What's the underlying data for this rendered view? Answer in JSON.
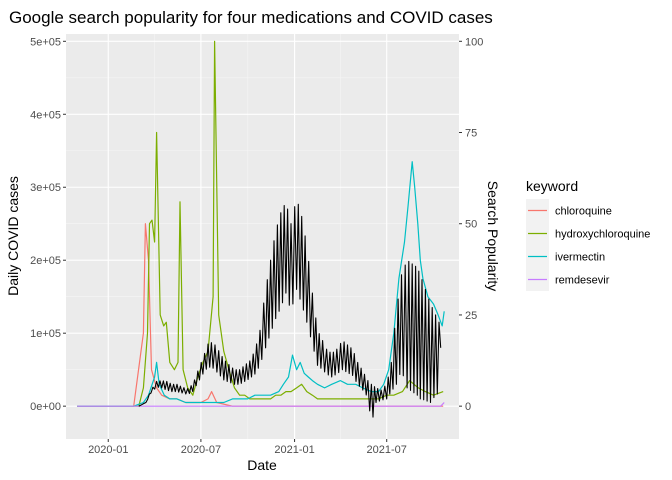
{
  "chart_data": {
    "type": "line",
    "title": "Google search popularity for four medications and COVID cases",
    "xlabel": "Date",
    "ylabel": "Daily COVID cases",
    "ylabel_right": "Search Popularity",
    "x_ticks": [
      "2020-01",
      "2020-07",
      "2021-01",
      "2021-07"
    ],
    "y_ticks": [
      "0e+00",
      "1e+05",
      "2e+05",
      "3e+05",
      "4e+05",
      "5e+05"
    ],
    "y2_ticks": [
      "0",
      "25",
      "50",
      "75",
      "100"
    ],
    "ylim": [
      -45000,
      510000
    ],
    "y2lim": [
      -9,
      102
    ],
    "xlim": [
      "2019-10-10",
      "2021-11-20"
    ],
    "grid": true,
    "legend_title": "keyword",
    "legend_position": "right",
    "covid_cases": {
      "color": "#000000",
      "x": [
        "2020-03-01",
        "2020-03-15",
        "2020-03-25",
        "2020-04-05",
        "2020-04-15",
        "2020-04-25",
        "2020-05-05",
        "2020-05-15",
        "2020-05-25",
        "2020-06-05",
        "2020-06-15",
        "2020-06-25",
        "2020-07-05",
        "2020-07-15",
        "2020-07-25",
        "2020-08-05",
        "2020-08-15",
        "2020-08-25",
        "2020-09-05",
        "2020-09-15",
        "2020-09-25",
        "2020-10-05",
        "2020-10-15",
        "2020-10-25",
        "2020-11-05",
        "2020-11-15",
        "2020-11-25",
        "2020-12-05",
        "2020-12-15",
        "2020-12-25",
        "2021-01-05",
        "2021-01-15",
        "2021-01-25",
        "2021-02-05",
        "2021-02-15",
        "2021-02-25",
        "2021-03-05",
        "2021-03-15",
        "2021-03-25",
        "2021-04-05",
        "2021-04-15",
        "2021-04-25",
        "2021-05-05",
        "2021-05-15",
        "2021-05-25",
        "2021-06-01",
        "2021-06-10",
        "2021-06-20",
        "2021-07-01",
        "2021-07-10",
        "2021-07-20",
        "2021-07-30",
        "2021-08-10",
        "2021-08-20",
        "2021-08-30",
        "2021-09-05",
        "2021-09-15",
        "2021-09-25",
        "2021-10-05",
        "2021-10-15"
      ],
      "values": [
        0,
        5000,
        20000,
        30000,
        30000,
        28000,
        25000,
        25000,
        22000,
        20000,
        25000,
        40000,
        55000,
        70000,
        70000,
        60000,
        50000,
        45000,
        40000,
        40000,
        45000,
        50000,
        60000,
        80000,
        120000,
        150000,
        180000,
        200000,
        230000,
        200000,
        240000,
        210000,
        170000,
        120000,
        80000,
        70000,
        60000,
        55000,
        60000,
        70000,
        65000,
        60000,
        45000,
        35000,
        25000,
        20000,
        15000,
        15000,
        20000,
        40000,
        80000,
        130000,
        160000,
        170000,
        160000,
        140000,
        120000,
        100000,
        90000,
        80000
      ],
      "weekly_low": [
        0,
        5000,
        18000,
        26000,
        25000,
        22000,
        20000,
        20000,
        18000,
        16000,
        20000,
        32000,
        44000,
        54000,
        52000,
        44000,
        36000,
        33000,
        30000,
        30000,
        34000,
        38000,
        44000,
        56000,
        80000,
        100000,
        120000,
        135000,
        155000,
        130000,
        160000,
        140000,
        115000,
        85000,
        56000,
        50000,
        44000,
        40000,
        44000,
        50000,
        46000,
        42000,
        30000,
        22000,
        12000,
        -25000,
        5000,
        8000,
        10000,
        20000,
        30000,
        50000,
        25000,
        20000,
        15000,
        10000,
        8000,
        5000,
        15000,
        20000
      ],
      "weekly_high": [
        0,
        5000,
        22000,
        34000,
        35000,
        34000,
        30000,
        30000,
        26000,
        24000,
        30000,
        48000,
        66000,
        85000,
        88000,
        76000,
        64000,
        57000,
        50000,
        50000,
        56000,
        62000,
        76000,
        104000,
        160000,
        200000,
        240000,
        265000,
        280000,
        250000,
        285000,
        260000,
        220000,
        155000,
        104000,
        90000,
        78000,
        72000,
        78000,
        90000,
        84000,
        78000,
        60000,
        48000,
        35000,
        30000,
        25000,
        22000,
        30000,
        60000,
        130000,
        180000,
        200000,
        195000,
        190000,
        180000,
        160000,
        140000,
        125000,
        110000
      ]
    },
    "series": [
      {
        "name": "chloroquine",
        "color": "#F8766D",
        "x": [
          "2019-11-01",
          "2020-02-20",
          "2020-03-10",
          "2020-03-14",
          "2020-03-20",
          "2020-03-26",
          "2020-04-05",
          "2020-04-15",
          "2020-05-01",
          "2020-05-15",
          "2020-06-01",
          "2020-07-01",
          "2020-07-15",
          "2020-07-22",
          "2020-08-01",
          "2020-09-01",
          "2021-01-01",
          "2021-07-01",
          "2021-10-20"
        ],
        "values": [
          0,
          0,
          20,
          50,
          40,
          10,
          5,
          3,
          2,
          2,
          1,
          1,
          2,
          4,
          1,
          0,
          0,
          0,
          0
        ]
      },
      {
        "name": "hydroxychloroquine",
        "color": "#7CAE00",
        "x": [
          "2019-11-01",
          "2020-03-01",
          "2020-03-10",
          "2020-03-18",
          "2020-03-22",
          "2020-03-27",
          "2020-04-01",
          "2020-04-05",
          "2020-04-12",
          "2020-04-19",
          "2020-04-24",
          "2020-05-01",
          "2020-05-10",
          "2020-05-17",
          "2020-05-21",
          "2020-05-27",
          "2020-06-05",
          "2020-06-15",
          "2020-06-25",
          "2020-07-05",
          "2020-07-15",
          "2020-07-25",
          "2020-07-28",
          "2020-08-05",
          "2020-08-15",
          "2020-08-25",
          "2020-09-05",
          "2020-09-15",
          "2020-09-25",
          "2020-10-05",
          "2020-10-15",
          "2020-10-25",
          "2020-11-05",
          "2020-11-15",
          "2020-11-25",
          "2020-12-05",
          "2020-12-15",
          "2020-12-25",
          "2021-01-05",
          "2021-01-15",
          "2021-01-25",
          "2021-02-05",
          "2021-02-15",
          "2021-03-01",
          "2021-03-15",
          "2021-04-01",
          "2021-05-01",
          "2021-06-01",
          "2021-06-15",
          "2021-07-01",
          "2021-07-15",
          "2021-08-01",
          "2021-08-15",
          "2021-09-01",
          "2021-09-15",
          "2021-10-01",
          "2021-10-20"
        ],
        "values": [
          0,
          0,
          5,
          20,
          50,
          51,
          45,
          75,
          25,
          22,
          23,
          12,
          10,
          12,
          56,
          10,
          5,
          3,
          8,
          12,
          15,
          30,
          100,
          25,
          15,
          10,
          5,
          3,
          3,
          2,
          2,
          2,
          2,
          2,
          3,
          3,
          4,
          4,
          5,
          6,
          4,
          3,
          2,
          2,
          2,
          2,
          2,
          2,
          2,
          3,
          3,
          4,
          7,
          5,
          4,
          3,
          4
        ]
      },
      {
        "name": "ivermectin",
        "color": "#00BFC4",
        "x": [
          "2019-11-01",
          "2020-02-20",
          "2020-03-10",
          "2020-03-20",
          "2020-04-01",
          "2020-04-05",
          "2020-04-10",
          "2020-04-20",
          "2020-05-01",
          "2020-05-15",
          "2020-06-01",
          "2020-06-15",
          "2020-07-01",
          "2020-07-15",
          "2020-08-01",
          "2020-08-15",
          "2020-09-01",
          "2020-09-15",
          "2020-10-01",
          "2020-10-15",
          "2020-11-01",
          "2020-11-15",
          "2020-12-01",
          "2020-12-10",
          "2020-12-20",
          "2020-12-28",
          "2021-01-05",
          "2021-01-12",
          "2021-01-20",
          "2021-01-28",
          "2021-02-05",
          "2021-02-15",
          "2021-03-01",
          "2021-03-15",
          "2021-04-01",
          "2021-04-15",
          "2021-05-01",
          "2021-05-15",
          "2021-06-01",
          "2021-06-15",
          "2021-06-25",
          "2021-07-05",
          "2021-07-15",
          "2021-07-25",
          "2021-08-05",
          "2021-08-12",
          "2021-08-20",
          "2021-08-25",
          "2021-08-31",
          "2021-09-05",
          "2021-09-10",
          "2021-09-20",
          "2021-10-01",
          "2021-10-10",
          "2021-10-18",
          "2021-10-22"
        ],
        "values": [
          0,
          0,
          1,
          3,
          8,
          12,
          6,
          3,
          2,
          2,
          1,
          1,
          1,
          1,
          1,
          1,
          2,
          2,
          2,
          3,
          3,
          3,
          4,
          6,
          8,
          14,
          10,
          12,
          9,
          8,
          7,
          6,
          5,
          6,
          7,
          6,
          6,
          5,
          4,
          4,
          6,
          10,
          20,
          35,
          45,
          55,
          67,
          60,
          50,
          40,
          35,
          30,
          28,
          25,
          22,
          26
        ]
      },
      {
        "name": "remdesevir",
        "color": "#C77CFF",
        "x": [
          "2019-11-01",
          "2020-03-01",
          "2020-05-01",
          "2021-01-01",
          "2021-07-01",
          "2021-10-15",
          "2021-10-22"
        ],
        "values": [
          0,
          0,
          0,
          0,
          0,
          0,
          1
        ]
      }
    ]
  }
}
